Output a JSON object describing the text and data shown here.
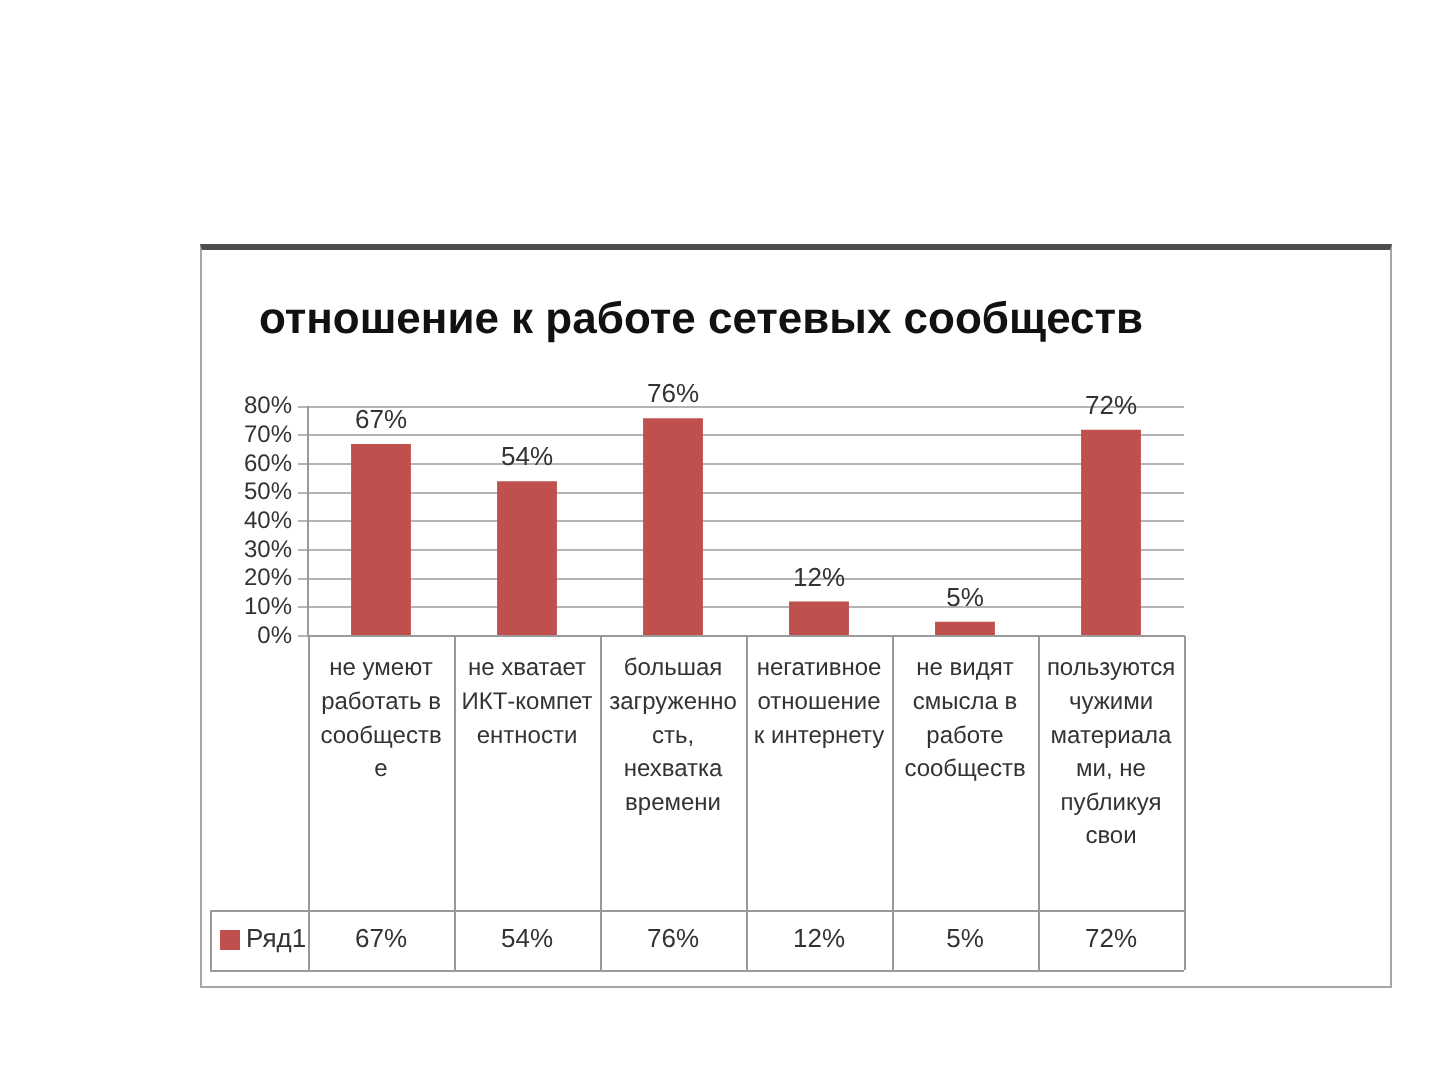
{
  "chart_data": {
    "type": "bar",
    "title": "отношение к работе сетевых сообществ",
    "categories": [
      "не умеют работать в сообществе",
      "не хватает ИКТ-компетентности",
      "большая загруженность, нехватка времени",
      "негативное отношение к интернету",
      "не видят смысла в работе сообществ",
      "пользуются чужими материалами, не публикуя свои"
    ],
    "series": [
      {
        "name": "Ряд1",
        "color": "#c0504d",
        "values": [
          67,
          54,
          76,
          12,
          5,
          72
        ],
        "value_labels": [
          "67%",
          "54%",
          "76%",
          "12%",
          "5%",
          "72%"
        ]
      }
    ],
    "ylim": [
      0,
      80
    ],
    "yticks": [
      {
        "value": 0,
        "label": "0%"
      },
      {
        "value": 10,
        "label": "10%"
      },
      {
        "value": 20,
        "label": "20%"
      },
      {
        "value": 30,
        "label": "30%"
      },
      {
        "value": 40,
        "label": "40%"
      },
      {
        "value": 50,
        "label": "50%"
      },
      {
        "value": 60,
        "label": "60%"
      },
      {
        "value": 70,
        "label": "70%"
      },
      {
        "value": 80,
        "label": "80%"
      }
    ],
    "grid": "y",
    "legend": "bottom"
  }
}
